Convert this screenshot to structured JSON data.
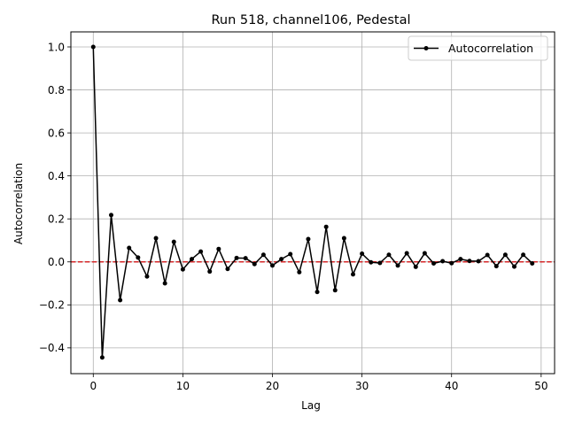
{
  "chart_data": {
    "type": "line",
    "title": "Run 518, channel106, Pedestal",
    "xlabel": "Lag",
    "ylabel": "Autocorrelation",
    "xlim": [
      -2.5,
      51.5
    ],
    "ylim": [
      -0.52,
      1.07
    ],
    "xticks": [
      0,
      10,
      20,
      30,
      40,
      50
    ],
    "yticks": [
      -0.4,
      -0.2,
      0.0,
      0.2,
      0.4,
      0.6,
      0.8,
      1.0
    ],
    "xtick_labels": [
      "0",
      "10",
      "20",
      "30",
      "40",
      "50"
    ],
    "ytick_labels": [
      "−0.4",
      "−0.2",
      "0.0",
      "0.2",
      "0.4",
      "0.6",
      "0.8",
      "1.0"
    ],
    "grid": true,
    "legend_position": "top-right",
    "series": [
      {
        "name": "Autocorrelation",
        "color": "#000000",
        "marker": "circle",
        "x": [
          0,
          1,
          2,
          3,
          4,
          5,
          6,
          7,
          8,
          9,
          10,
          11,
          12,
          13,
          14,
          15,
          16,
          17,
          18,
          19,
          20,
          21,
          22,
          23,
          24,
          25,
          26,
          27,
          28,
          29,
          30,
          31,
          32,
          33,
          34,
          35,
          36,
          37,
          38,
          39,
          40,
          41,
          42,
          43,
          44,
          45,
          46,
          47,
          48,
          49
        ],
        "values": [
          1.0,
          -0.445,
          0.218,
          -0.178,
          0.065,
          0.02,
          -0.068,
          0.11,
          -0.1,
          0.093,
          -0.035,
          0.013,
          0.048,
          -0.045,
          0.06,
          -0.033,
          0.018,
          0.017,
          -0.01,
          0.033,
          -0.017,
          0.013,
          0.036,
          -0.048,
          0.106,
          -0.14,
          0.163,
          -0.132,
          0.11,
          -0.058,
          0.038,
          -0.002,
          -0.005,
          0.033,
          -0.017,
          0.04,
          -0.023,
          0.04,
          -0.007,
          0.003,
          -0.006,
          0.013,
          0.004,
          0.003,
          0.032,
          -0.02,
          0.033,
          -0.022,
          0.033,
          -0.007
        ]
      }
    ],
    "reference_line": {
      "y": 0.0,
      "color": "#d62728",
      "style": "dashed"
    }
  }
}
